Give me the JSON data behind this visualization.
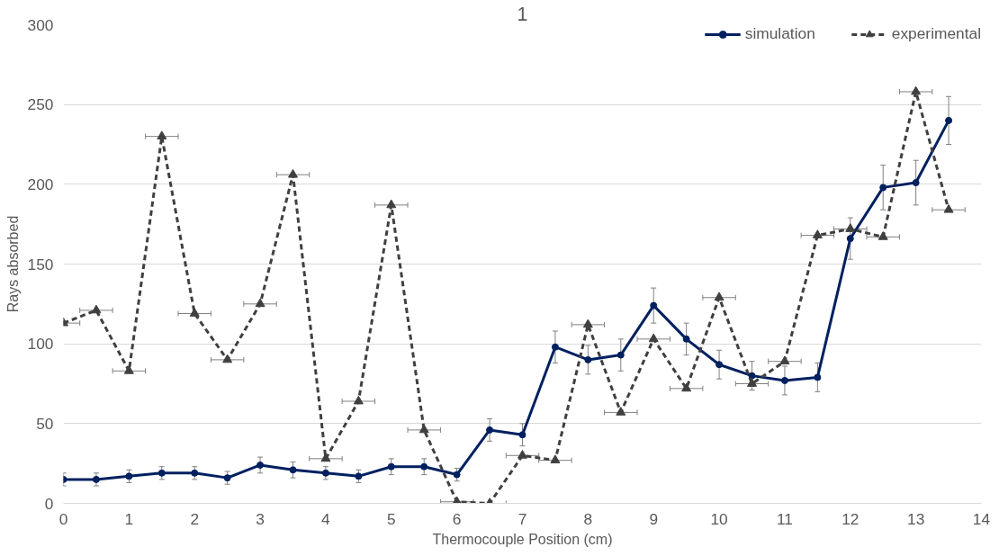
{
  "chart_data": {
    "type": "line",
    "title": "1",
    "xlabel": "Thermocouple Position (cm)",
    "ylabel": "Rays absorbed",
    "x": [
      0,
      0.5,
      1,
      1.5,
      2,
      2.5,
      3,
      3.5,
      4,
      4.5,
      5,
      5.5,
      6,
      6.5,
      7,
      7.5,
      8,
      8.5,
      9,
      9.5,
      10,
      10.5,
      11,
      11.5,
      12,
      12.5,
      13,
      13.5
    ],
    "series": [
      {
        "name": "simulation",
        "color": "#002060",
        "marker": "circle",
        "line_style": "solid",
        "values": [
          15,
          15,
          17,
          19,
          19,
          16,
          24,
          21,
          19,
          17,
          23,
          23,
          18,
          46,
          43,
          98,
          90,
          93,
          124,
          103,
          87,
          80,
          77,
          79,
          166,
          198,
          201,
          240
        ],
        "errors": [
          4,
          4,
          4,
          4,
          4,
          4,
          5,
          5,
          4,
          4,
          5,
          5,
          4,
          7,
          7,
          10,
          9,
          10,
          11,
          10,
          9,
          9,
          9,
          9,
          13,
          14,
          14,
          15
        ]
      },
      {
        "name": "experimental",
        "color": "#404040",
        "marker": "triangle",
        "line_style": "dashed",
        "values": [
          113,
          121,
          83,
          230,
          119,
          90,
          125,
          206,
          28,
          64,
          187,
          46,
          1,
          0,
          30,
          27,
          112,
          57,
          103,
          72,
          129,
          75,
          89,
          168,
          172,
          167,
          258,
          184
        ],
        "xerrors": [
          [
            0,
            0.25
          ],
          0.25,
          0.25,
          0.25,
          0.25,
          0.25,
          0.25,
          0.25,
          0.25,
          0.25,
          0.25,
          0.25,
          0.25,
          0.25,
          0.25,
          0.25,
          0.25,
          0.25,
          0.25,
          0.25,
          0.25,
          0.25,
          0.25,
          0.25,
          0.25,
          0.25,
          0.25,
          0.25
        ]
      }
    ],
    "xlim": [
      0,
      14
    ],
    "xticks": [
      0,
      1,
      2,
      3,
      4,
      5,
      6,
      7,
      8,
      9,
      10,
      11,
      12,
      13,
      14
    ],
    "ylim": [
      0,
      300
    ],
    "yticks": [
      0,
      50,
      100,
      150,
      200,
      250,
      300
    ],
    "grid": "y",
    "legend": "top right"
  }
}
